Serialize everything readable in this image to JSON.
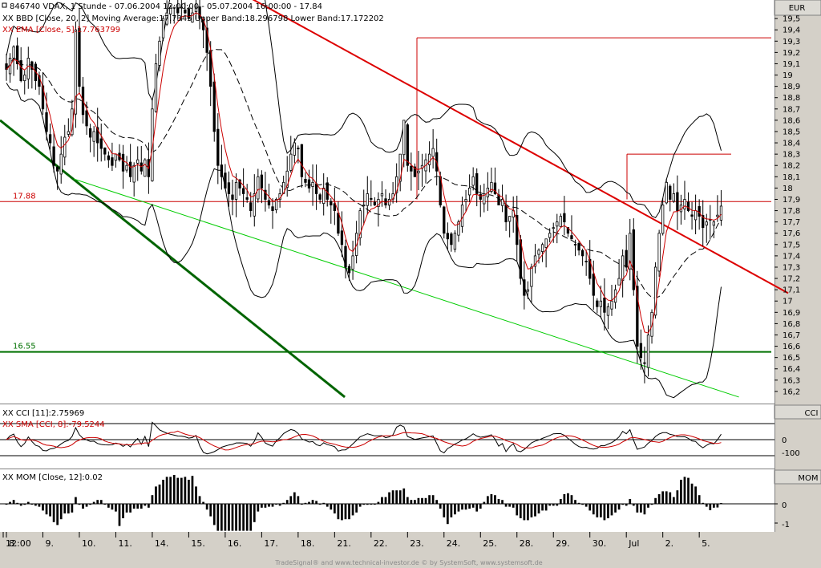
{
  "instrument": {
    "header_black": "846740  VDAX, 1 Stunde - 07.06.2004 12:00:00 - 05.07.2004 16:00:00 - 17.84",
    "bbd_legend": "XX BBD [Close, 20, 2] Moving Average:17.7345 Upper Band:18.296798 Lower Band:17.172202",
    "ema_legend": "XX EMA [Close, 5]:17.763799",
    "currency": "EUR"
  },
  "cci_panel": {
    "legend_cci": "XX CCI [11]:2.75969",
    "legend_sma": "XX SMA [CCI, 8]:-79.5244",
    "title": "CCI",
    "tick_labels": [
      "0",
      "-100"
    ]
  },
  "mom_panel": {
    "legend": "XX MOM [Close, 12]:0.02",
    "title": "MOM",
    "tick_labels": [
      "0",
      "-1"
    ]
  },
  "footer": {
    "credit": "TradeSignal® and www.technical-investor.de © by SystemSoft, www.systemsoft.de"
  },
  "colors": {
    "candle": "#000000",
    "ema": "#cc0000",
    "downtrend": "#dd0000",
    "long_trend": "#006400",
    "support_light": "#00cc00",
    "support_1655": "#007000",
    "level_1788": "#cc0000",
    "axis_bg": "#d4d0c8"
  },
  "chart_data": [
    {
      "type": "candlestick",
      "title": "846740  VDAX, 1 Stunde - 07.06.2004 12:00:00 - 05.07.2004 16:00:00 - 17.84",
      "ylabel": "EUR",
      "ylim": [
        16.1,
        19.65
      ],
      "y_ticks": [
        16.2,
        16.3,
        16.4,
        16.5,
        16.6,
        16.7,
        16.8,
        16.9,
        17,
        17.1,
        17.2,
        17.3,
        17.4,
        17.5,
        17.6,
        17.7,
        17.8,
        17.9,
        18,
        18.1,
        18.2,
        18.3,
        18.4,
        18.5,
        18.6,
        18.7,
        18.8,
        18.9,
        19,
        19.1,
        19.2,
        19.3,
        19.4,
        19.5
      ],
      "x_labels": [
        "12:00",
        "8.",
        "9.",
        "10.",
        "11.",
        "14.",
        "15.",
        "16.",
        "17.",
        "18.",
        "21.",
        "22.",
        "23.",
        "24.",
        "25.",
        "28.",
        "29.",
        "30.",
        "Jul",
        "2.",
        "5."
      ],
      "close_series": [
        {
          "date": "8.",
          "v": [
            19.05,
            19.15,
            19.25,
            19.1,
            18.95,
            19.0,
            19.15,
            19.05,
            18.95,
            18.9
          ]
        },
        {
          "date": "9.",
          "v": [
            18.7,
            18.5,
            18.4,
            18.2,
            18.15,
            18.3,
            18.45,
            18.5,
            18.7,
            19.4
          ]
        },
        {
          "date": "10.",
          "v": [
            18.9,
            18.65,
            18.55,
            18.45,
            18.5,
            18.4,
            18.35,
            18.3,
            18.25,
            18.2
          ]
        },
        {
          "date": "11.",
          "v": [
            18.3,
            18.25,
            18.15,
            18.2,
            18.1,
            18.2,
            18.25,
            18.15,
            18.25,
            18.1
          ]
        },
        {
          "date": "14.",
          "v": [
            18.7,
            19.1,
            19.3,
            19.5,
            19.55,
            19.6,
            19.6,
            19.55,
            19.6,
            19.55
          ]
        },
        {
          "date": "15.",
          "v": [
            19.5,
            19.55,
            19.6,
            19.5,
            19.4,
            19.2,
            18.9,
            18.5,
            18.2,
            18.1
          ]
        },
        {
          "date": "16.",
          "v": [
            18.0,
            17.95,
            17.9,
            18.05,
            18.0,
            17.95,
            17.9,
            17.8,
            17.95,
            18.1
          ]
        },
        {
          "date": "17.",
          "v": [
            18.0,
            17.9,
            17.85,
            17.8,
            17.9,
            17.95,
            18.05,
            18.15,
            18.3,
            18.4
          ]
        },
        {
          "date": "18.",
          "v": [
            18.35,
            18.1,
            18.05,
            18.0,
            18.05,
            17.95,
            17.9,
            18.0,
            17.9,
            17.85
          ]
        },
        {
          "date": "21.",
          "v": [
            17.8,
            17.6,
            17.5,
            17.3,
            17.25,
            17.4,
            17.6,
            17.8,
            17.85,
            17.95
          ]
        },
        {
          "date": "22.",
          "v": [
            17.9,
            17.85,
            17.9,
            17.95,
            17.85,
            17.9,
            17.95,
            18.1,
            18.3,
            18.6
          ]
        },
        {
          "date": "23.",
          "v": [
            18.2,
            18.15,
            18.1,
            18.15,
            18.2,
            18.25,
            18.3,
            18.35,
            18.15,
            17.85
          ]
        },
        {
          "date": "24.",
          "v": [
            17.6,
            17.55,
            17.5,
            17.6,
            17.7,
            17.85,
            17.9,
            18.0,
            18.1,
            17.95
          ]
        },
        {
          "date": "25.",
          "v": [
            17.9,
            17.95,
            18.0,
            18.05,
            17.95,
            17.85,
            17.9,
            17.7,
            17.75,
            17.8
          ]
        },
        {
          "date": "28.",
          "v": [
            17.5,
            17.2,
            17.05,
            17.1,
            17.3,
            17.4,
            17.45,
            17.5,
            17.55,
            17.6
          ]
        },
        {
          "date": "29.",
          "v": [
            17.65,
            17.7,
            17.75,
            17.7,
            17.6,
            17.55,
            17.5,
            17.45,
            17.4,
            17.35
          ]
        },
        {
          "date": "30.",
          "v": [
            17.2,
            17.05,
            16.95,
            17.0,
            16.9,
            16.95,
            17.0,
            17.1,
            17.2,
            17.4
          ]
        },
        {
          "date": "Jul",
          "v": [
            17.3,
            17.6,
            17.1,
            16.6,
            16.5,
            16.45,
            16.7,
            16.9,
            17.3,
            17.6
          ]
        },
        {
          "date": "2.",
          "v": [
            17.85,
            18.05,
            17.9,
            17.95,
            17.8,
            17.85,
            17.9,
            17.8,
            17.75,
            17.8
          ]
        },
        {
          "date": "5.",
          "v": [
            17.75,
            17.65,
            17.7,
            17.72,
            17.7,
            17.76,
            17.84
          ]
        }
      ],
      "overlays": {
        "ema": {
          "name": "EMA [Close, 5]",
          "last": 17.763799
        },
        "bollinger": {
          "name": "BBD [Close, 20, 2]",
          "middle_last": 17.7345,
          "upper_last": 18.296798,
          "lower_last": 17.172202
        }
      },
      "horizontal_levels": [
        {
          "label": "17.88",
          "value": 17.88
        },
        {
          "label": "16.55",
          "value": 16.55
        },
        {
          "label": "",
          "value": 19.33
        },
        {
          "label": "",
          "value": 18.3
        }
      ],
      "trendlines": [
        {
          "name": "downtrend",
          "from": [
            0.225,
            20.0
          ],
          "to": [
            0.96,
            17.07
          ]
        },
        {
          "name": "long_trend",
          "from": [
            0.0,
            18.6
          ],
          "to": [
            0.42,
            16.15
          ]
        },
        {
          "name": "support",
          "from": [
            0.09,
            18.08
          ],
          "to": [
            0.9,
            16.15
          ]
        }
      ]
    },
    {
      "type": "line",
      "title": "XX CCI [11]:2.75969",
      "series": [
        {
          "name": "CCI [11]",
          "last": 2.75969
        },
        {
          "name": "SMA [CCI, 8]",
          "last": -79.5244
        }
      ],
      "y_ticks": [
        0,
        -100
      ],
      "reference_levels": [
        100,
        0,
        -100
      ]
    },
    {
      "type": "bar",
      "title": "XX MOM [Close, 12]:0.02",
      "series": [
        {
          "name": "MOM [Close, 12]",
          "last": 0.02
        }
      ],
      "y_ticks": [
        0,
        -1
      ]
    }
  ]
}
